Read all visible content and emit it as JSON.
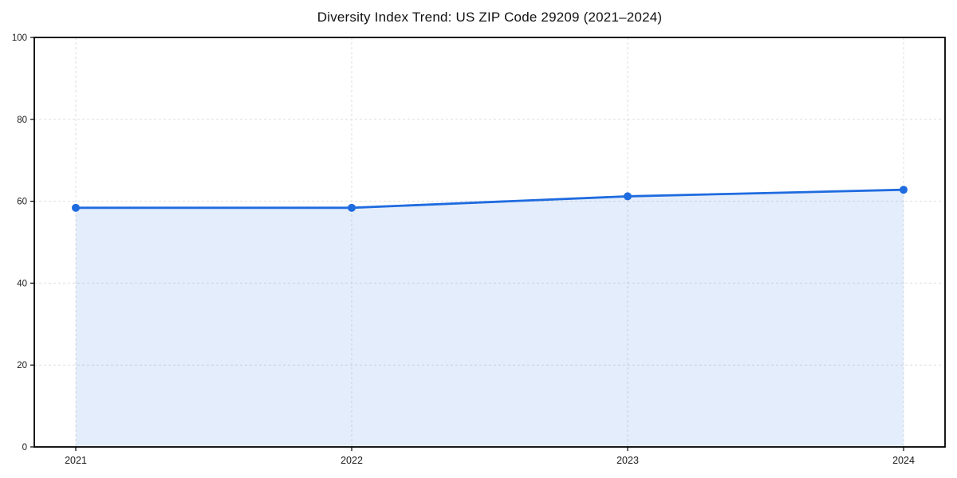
{
  "title": "Diversity Index Trend: US ZIP Code 29209 (2021–2024)",
  "chart_data": {
    "type": "area",
    "title": "Diversity Index Trend: US ZIP Code 29209 (2021–2024)",
    "categories": [
      "2021",
      "2022",
      "2023",
      "2024"
    ],
    "series": [
      {
        "name": "Diversity Index",
        "values": [
          58.4,
          58.4,
          61.2,
          62.8
        ]
      }
    ],
    "xlabel": "",
    "ylabel": "",
    "ylim": [
      0,
      100
    ],
    "yticks": [
      0,
      20,
      40,
      60,
      80,
      100
    ],
    "grid": true,
    "grid_style": "dashed",
    "legend_position": "none",
    "colors": {
      "line": "#1f6be0",
      "marker": "#1f6be0",
      "fill": "#1f6be0",
      "fill_opacity": 0.12,
      "gridline": "#dedede",
      "spine": "#000000",
      "tick_label": "#1a1a1a",
      "background": "#ffffff"
    }
  }
}
